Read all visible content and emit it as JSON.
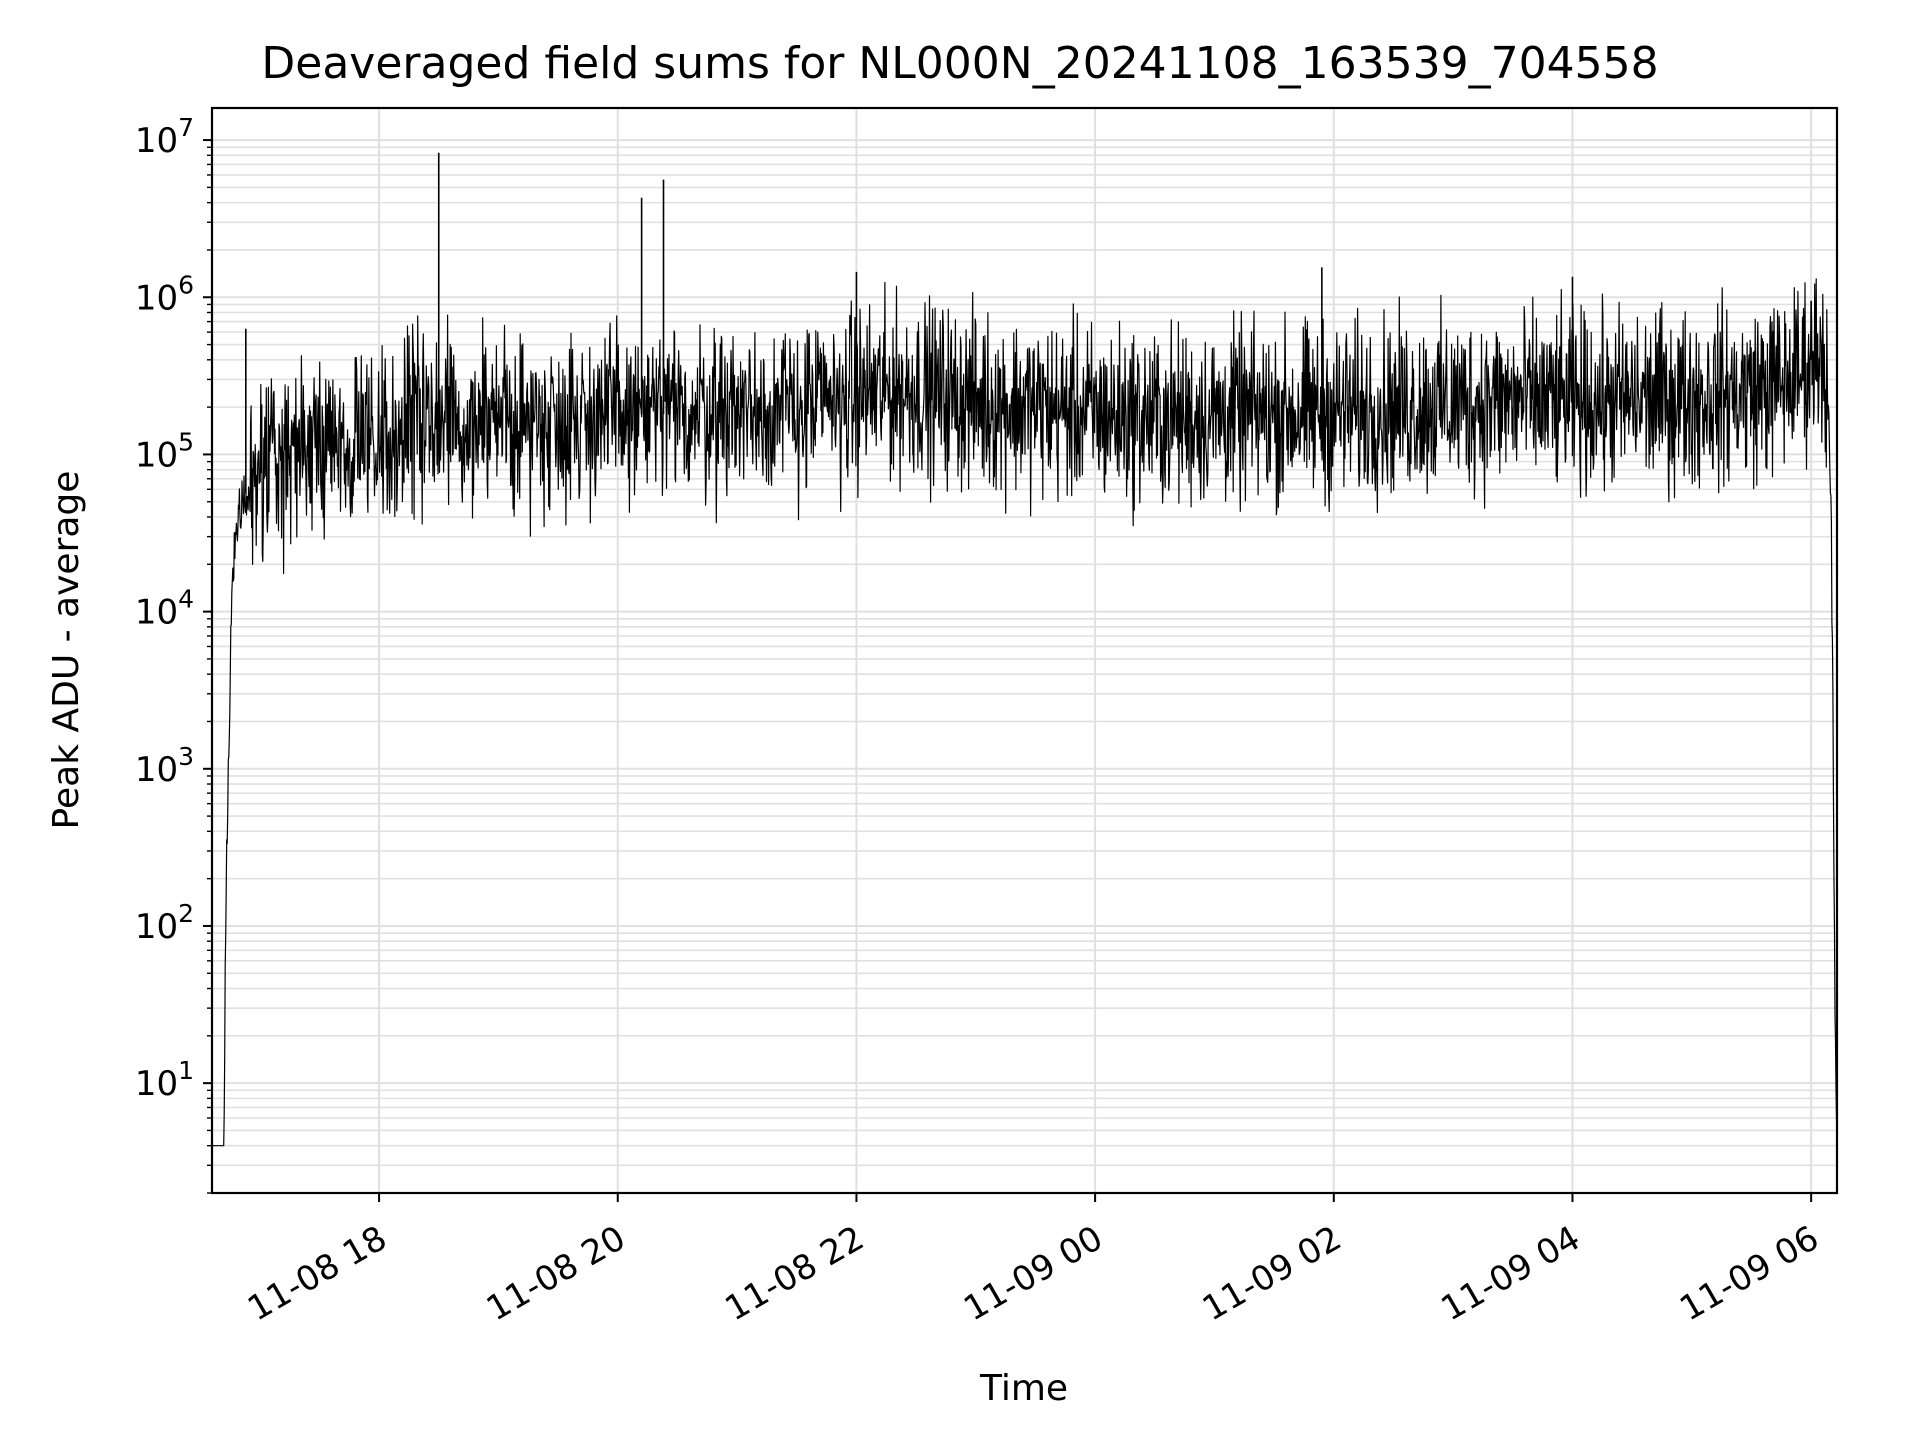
{
  "chart_data": {
    "type": "line",
    "title": "Deaveraged field sums for NL000N_20241108_163539_704558",
    "xlabel": "Time",
    "ylabel": "Peak ADU - average",
    "yscale": "log",
    "ylim": [
      2,
      16000000
    ],
    "xlim": [
      "2024-11-08 16:36",
      "2024-11-09 06:13"
    ],
    "grid": true,
    "x_ticks": [
      "11-08 18",
      "11-08 20",
      "11-08 22",
      "11-09 00",
      "11-09 02",
      "11-09 04",
      "11-09 06"
    ],
    "y_ticks": [
      "10^1",
      "10^2",
      "10^3",
      "10^4",
      "10^5",
      "10^6",
      "10^7"
    ],
    "series": [
      {
        "color": "#000000",
        "x": [
          "2024-11-08 16:36",
          "2024-11-08 16:42",
          "2024-11-08 16:43",
          "2024-11-08 16:44",
          "2024-11-08 16:45",
          "2024-11-08 16:46",
          "2024-11-08 16:48",
          "2024-11-08 16:50",
          "2024-11-08 16:52",
          "2024-11-08 16:55",
          "2024-11-08 17:00",
          "2024-11-08 17:10",
          "2024-11-08 17:20",
          "2024-11-08 17:30",
          "2024-11-08 17:45",
          "2024-11-08 18:00",
          "2024-11-08 18:15",
          "2024-11-08 18:30",
          "2024-11-08 18:45",
          "2024-11-08 19:00",
          "2024-11-08 19:30",
          "2024-11-08 20:00",
          "2024-11-08 20:30",
          "2024-11-08 21:00",
          "2024-11-08 21:30",
          "2024-11-08 22:00",
          "2024-11-08 22:30",
          "2024-11-08 23:00",
          "2024-11-08 23:30",
          "2024-11-09 00:00",
          "2024-11-09 00:30",
          "2024-11-09 01:00",
          "2024-11-09 01:30",
          "2024-11-09 02:00",
          "2024-11-09 02:30",
          "2024-11-09 03:00",
          "2024-11-09 03:30",
          "2024-11-09 04:00",
          "2024-11-09 04:30",
          "2024-11-09 05:00",
          "2024-11-09 05:30",
          "2024-11-09 05:50",
          "2024-11-09 06:00",
          "2024-11-09 06:05",
          "2024-11-09 06:08",
          "2024-11-09 06:10",
          "2024-11-09 06:11",
          "2024-11-09 06:12",
          "2024-11-09 06:13"
        ],
        "y": [
          4,
          4,
          150,
          800,
          3000,
          15000,
          30000,
          45000,
          55000,
          60000,
          75000,
          90000,
          100000,
          110000,
          120000,
          130000,
          150000,
          160000,
          170000,
          160000,
          170000,
          180000,
          180000,
          200000,
          190000,
          240000,
          260000,
          220000,
          200000,
          180000,
          170000,
          175000,
          180000,
          185000,
          200000,
          210000,
          220000,
          215000,
          220000,
          230000,
          250000,
          300000,
          400000,
          500000,
          300000,
          50000,
          2000,
          20,
          4
        ]
      }
    ],
    "spikes": [
      {
        "x": "2024-11-08 16:53",
        "y": 630000
      },
      {
        "x": "2024-11-08 18:30",
        "y": 8300000
      },
      {
        "x": "2024-11-08 20:12",
        "y": 4300000
      },
      {
        "x": "2024-11-08 20:23",
        "y": 5600000
      },
      {
        "x": "2024-11-08 22:00",
        "y": 1450000
      },
      {
        "x": "2024-11-09 01:54",
        "y": 1550000
      },
      {
        "x": "2024-11-09 04:00",
        "y": 1350000
      },
      {
        "x": "2024-11-09 06:00",
        "y": 950000
      }
    ]
  }
}
